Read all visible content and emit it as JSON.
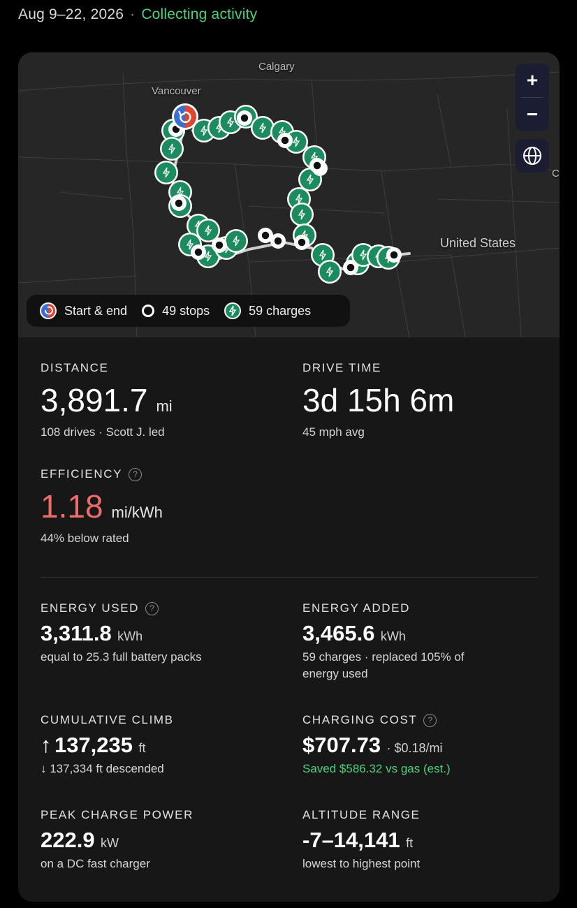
{
  "header": {
    "date_range": "Aug 9–22, 2026",
    "separator": "·",
    "status": "Collecting activity",
    "status_color": "#4cd27a"
  },
  "map": {
    "labels": {
      "calgary": "Calgary",
      "vancouver": "Vancouver",
      "united_states": "United States",
      "edge": "C"
    },
    "controls": {
      "zoom_in": "+",
      "zoom_out": "−",
      "globe_icon": "globe-icon"
    },
    "legend": {
      "start_end": "Start & end",
      "stops": "49 stops",
      "charges": "59 charges"
    },
    "colors": {
      "charge_marker": "#1c8c5e",
      "start_red": "#e0452f",
      "start_blue": "#3b6fd8"
    }
  },
  "stats": {
    "distance": {
      "label": "DISTANCE",
      "value": "3,891.7",
      "unit": "mi",
      "sub": "108 drives · Scott J. led"
    },
    "drive_time": {
      "label": "DRIVE TIME",
      "value": "3d 15h 6m",
      "sub": "45 mph avg"
    },
    "efficiency": {
      "label": "EFFICIENCY",
      "value": "1.18",
      "unit": "mi/kWh",
      "sub": "44% below rated",
      "value_color": "#f06b6b"
    },
    "energy_used": {
      "label": "ENERGY USED",
      "value": "3,311.8",
      "unit": "kWh",
      "sub": "equal to 25.3 full battery packs"
    },
    "energy_added": {
      "label": "ENERGY ADDED",
      "value": "3,465.6",
      "unit": "kWh",
      "sub_line1": "59 charges · replaced 105% of",
      "sub_line2": "energy used"
    },
    "cumulative_climb": {
      "label": "CUMULATIVE CLIMB",
      "arrow": "↑",
      "value": "137,235",
      "unit": "ft",
      "sub": "↓ 137,334 ft descended"
    },
    "charging_cost": {
      "label": "CHARGING COST",
      "value": "$707.73",
      "extra": "· $0.18/mi",
      "sub": "Saved $586.32 vs gas (est.)"
    },
    "peak_charge_power": {
      "label": "PEAK CHARGE POWER",
      "value": "222.9",
      "unit": "kW",
      "sub": "on a DC fast charger"
    },
    "altitude_range": {
      "label": "ALTITUDE RANGE",
      "value": "-7–14,141",
      "unit": "ft",
      "sub": "lowest to highest point"
    },
    "help_glyph": "?"
  }
}
